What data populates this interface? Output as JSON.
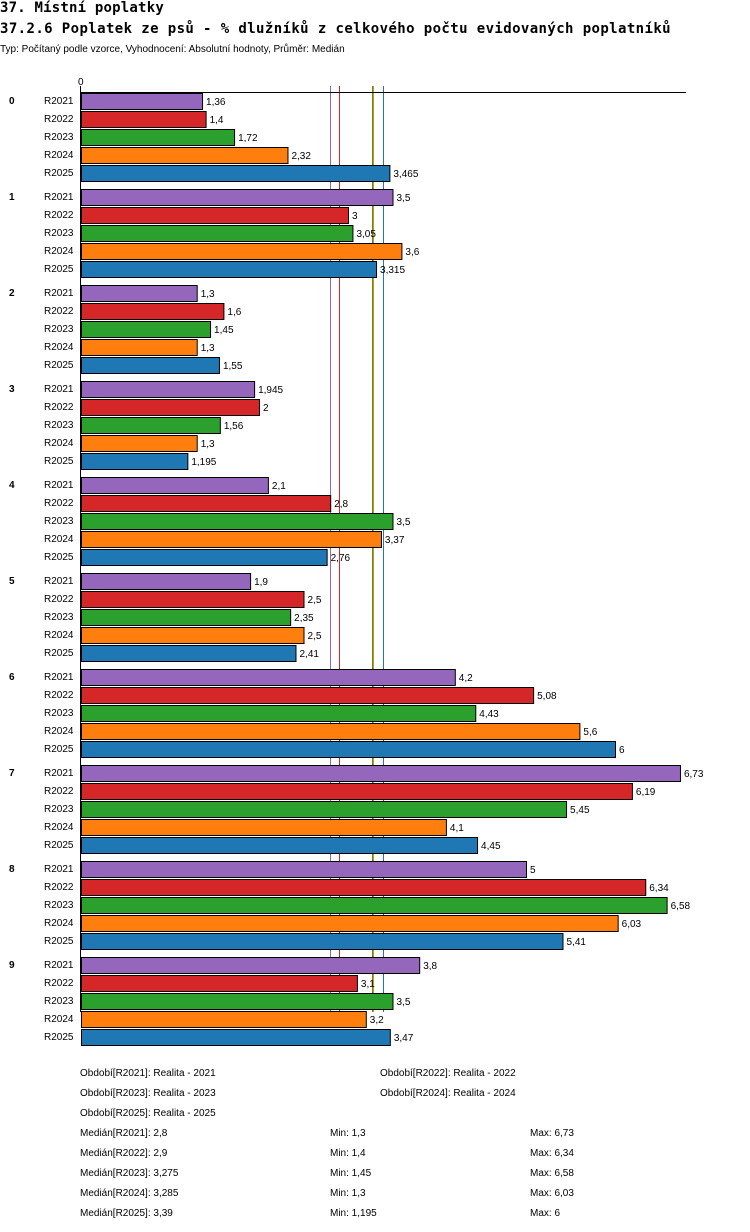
{
  "header": {
    "section_title": "37. Místní poplatky",
    "chart_title": "37.2.6 Poplatek ze psů - % dlužníků z celkového počtu evidovaných poplatníků",
    "subtitle": "Typ: Počítaný podle vzorce, Vyhodnocení: Absolutní hodnoty, Průměr: Medián"
  },
  "chart_data": {
    "type": "bar",
    "orientation": "horizontal",
    "title": "37.2.6 Poplatek ze psů - % dlužníků z celkového počtu evidovaných poplatníků",
    "axis_zero_label": "0",
    "xlim": [
      0,
      6.8
    ],
    "categories": [
      "0",
      "1",
      "2",
      "3",
      "4",
      "5",
      "6",
      "7",
      "8",
      "9"
    ],
    "series": [
      {
        "name": "R2021",
        "color": "#9467bd",
        "values": [
          1.36,
          3.5,
          1.3,
          1.945,
          2.1,
          1.9,
          4.2,
          6.73,
          5,
          3.8
        ],
        "labels": [
          "1,36",
          "3,5",
          "1,3",
          "1,945",
          "2,1",
          "1,9",
          "4,2",
          "6,73",
          "5",
          "3,8"
        ]
      },
      {
        "name": "R2022",
        "color": "#d62728",
        "values": [
          1.4,
          3,
          1.6,
          2,
          2.8,
          2.5,
          5.08,
          6.19,
          6.34,
          3.1
        ],
        "labels": [
          "1,4",
          "3",
          "1,6",
          "2",
          "2,8",
          "2,5",
          "5,08",
          "6,19",
          "6,34",
          "3,1"
        ]
      },
      {
        "name": "R2023",
        "color": "#2ca02c",
        "values": [
          1.72,
          3.05,
          1.45,
          1.56,
          3.5,
          2.35,
          4.43,
          5.45,
          6.58,
          3.5
        ],
        "labels": [
          "1,72",
          "3,05",
          "1,45",
          "1,56",
          "3,5",
          "2,35",
          "4,43",
          "5,45",
          "6,58",
          "3,5"
        ]
      },
      {
        "name": "R2024",
        "color": "#ff7f0e",
        "values": [
          2.32,
          3.6,
          1.3,
          1.3,
          3.37,
          2.5,
          5.6,
          4.1,
          6.03,
          3.2
        ],
        "labels": [
          "2,32",
          "3,6",
          "1,3",
          "1,3",
          "3,37",
          "2,5",
          "5,6",
          "4,1",
          "6,03",
          "3,2"
        ]
      },
      {
        "name": "R2025",
        "color": "#1f77b4",
        "values": [
          3.465,
          3.315,
          1.55,
          1.195,
          2.76,
          2.41,
          6,
          4.45,
          5.41,
          3.47
        ],
        "labels": [
          "3,465",
          "3,315",
          "1,55",
          "1,195",
          "2,76",
          "2,41",
          "6",
          "4,45",
          "5,41",
          "3,47"
        ]
      }
    ],
    "medians": [
      2.8,
      2.9,
      3.275,
      3.285,
      3.39
    ]
  },
  "legend": {
    "periods": [
      "Období[R2021]: Realita - 2021",
      "Období[R2022]: Realita - 2022",
      "Období[R2023]: Realita - 2023",
      "Období[R2024]: Realita - 2024",
      "Období[R2025]: Realita - 2025"
    ],
    "stats": [
      {
        "median": "Medián[R2021]: 2,8",
        "min": "Min: 1,3",
        "max": "Max: 6,73"
      },
      {
        "median": "Medián[R2022]: 2,9",
        "min": "Min: 1,4",
        "max": "Max: 6,34"
      },
      {
        "median": "Medián[R2023]: 3,275",
        "min": "Min: 1,45",
        "max": "Max: 6,58"
      },
      {
        "median": "Medián[R2024]: 3,285",
        "min": "Min: 1,3",
        "max": "Max: 6,03"
      },
      {
        "median": "Medián[R2025]: 3,39",
        "min": "Min: 1,195",
        "max": "Max: 6"
      }
    ]
  }
}
